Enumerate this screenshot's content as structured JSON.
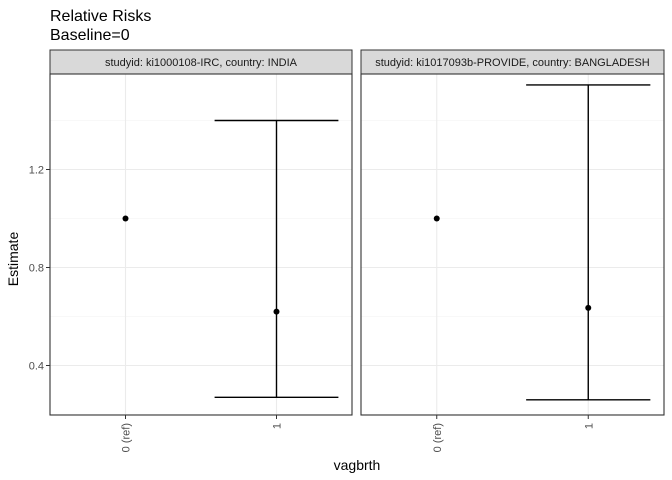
{
  "chart_data": {
    "type": "scatter",
    "title": "Relative Risks",
    "subtitle": "Baseline=0",
    "xlabel": "vagbrth",
    "ylabel": "Estimate",
    "categories": [
      "0 (ref)",
      "1"
    ],
    "yticks": [
      0.4,
      0.8,
      1.2
    ],
    "ytick_labels": [
      "0.4",
      "0.8",
      "1.2"
    ],
    "ylim": [
      0.2,
      1.6
    ],
    "grid": true,
    "facets": [
      {
        "label": "studyid: ki1000108-IRC, country: INDIA",
        "points": [
          {
            "x": "0 (ref)",
            "estimate": 1.0,
            "lower": null,
            "upper": null
          },
          {
            "x": "1",
            "estimate": 0.62,
            "lower": 0.27,
            "upper": 1.4
          }
        ]
      },
      {
        "label": "studyid: ki1017093b-PROVIDE, country: BANGLADESH",
        "points": [
          {
            "x": "0 (ref)",
            "estimate": 1.0,
            "lower": null,
            "upper": null
          },
          {
            "x": "1",
            "estimate": 0.635,
            "lower": 0.26,
            "upper": 1.545
          }
        ]
      }
    ],
    "colors": {
      "point": "#000000",
      "errorbar": "#000000",
      "strip_fill": "#d9d9d9",
      "grid": "#ebebeb",
      "border": "#333333"
    }
  }
}
